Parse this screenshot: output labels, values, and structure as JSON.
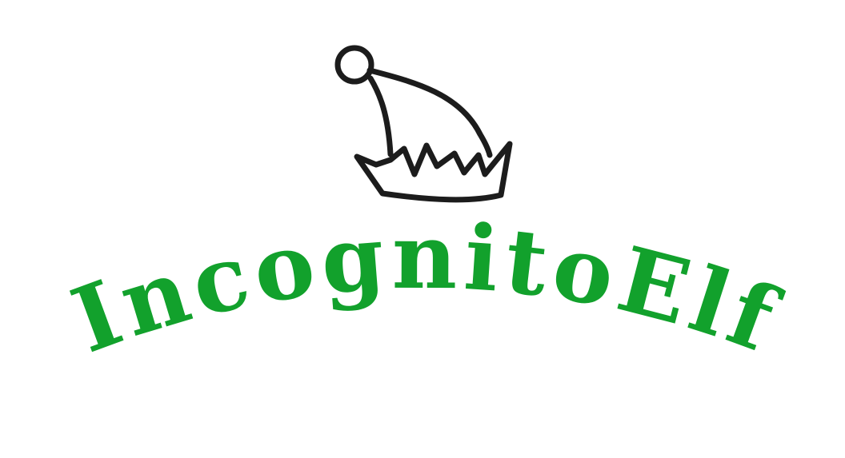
{
  "brand": {
    "name": "IncognitoElf",
    "color": "#12a12c",
    "hat_stroke_color": "#1c1c1c"
  },
  "icons": {
    "hat": "elf-hat-icon"
  }
}
